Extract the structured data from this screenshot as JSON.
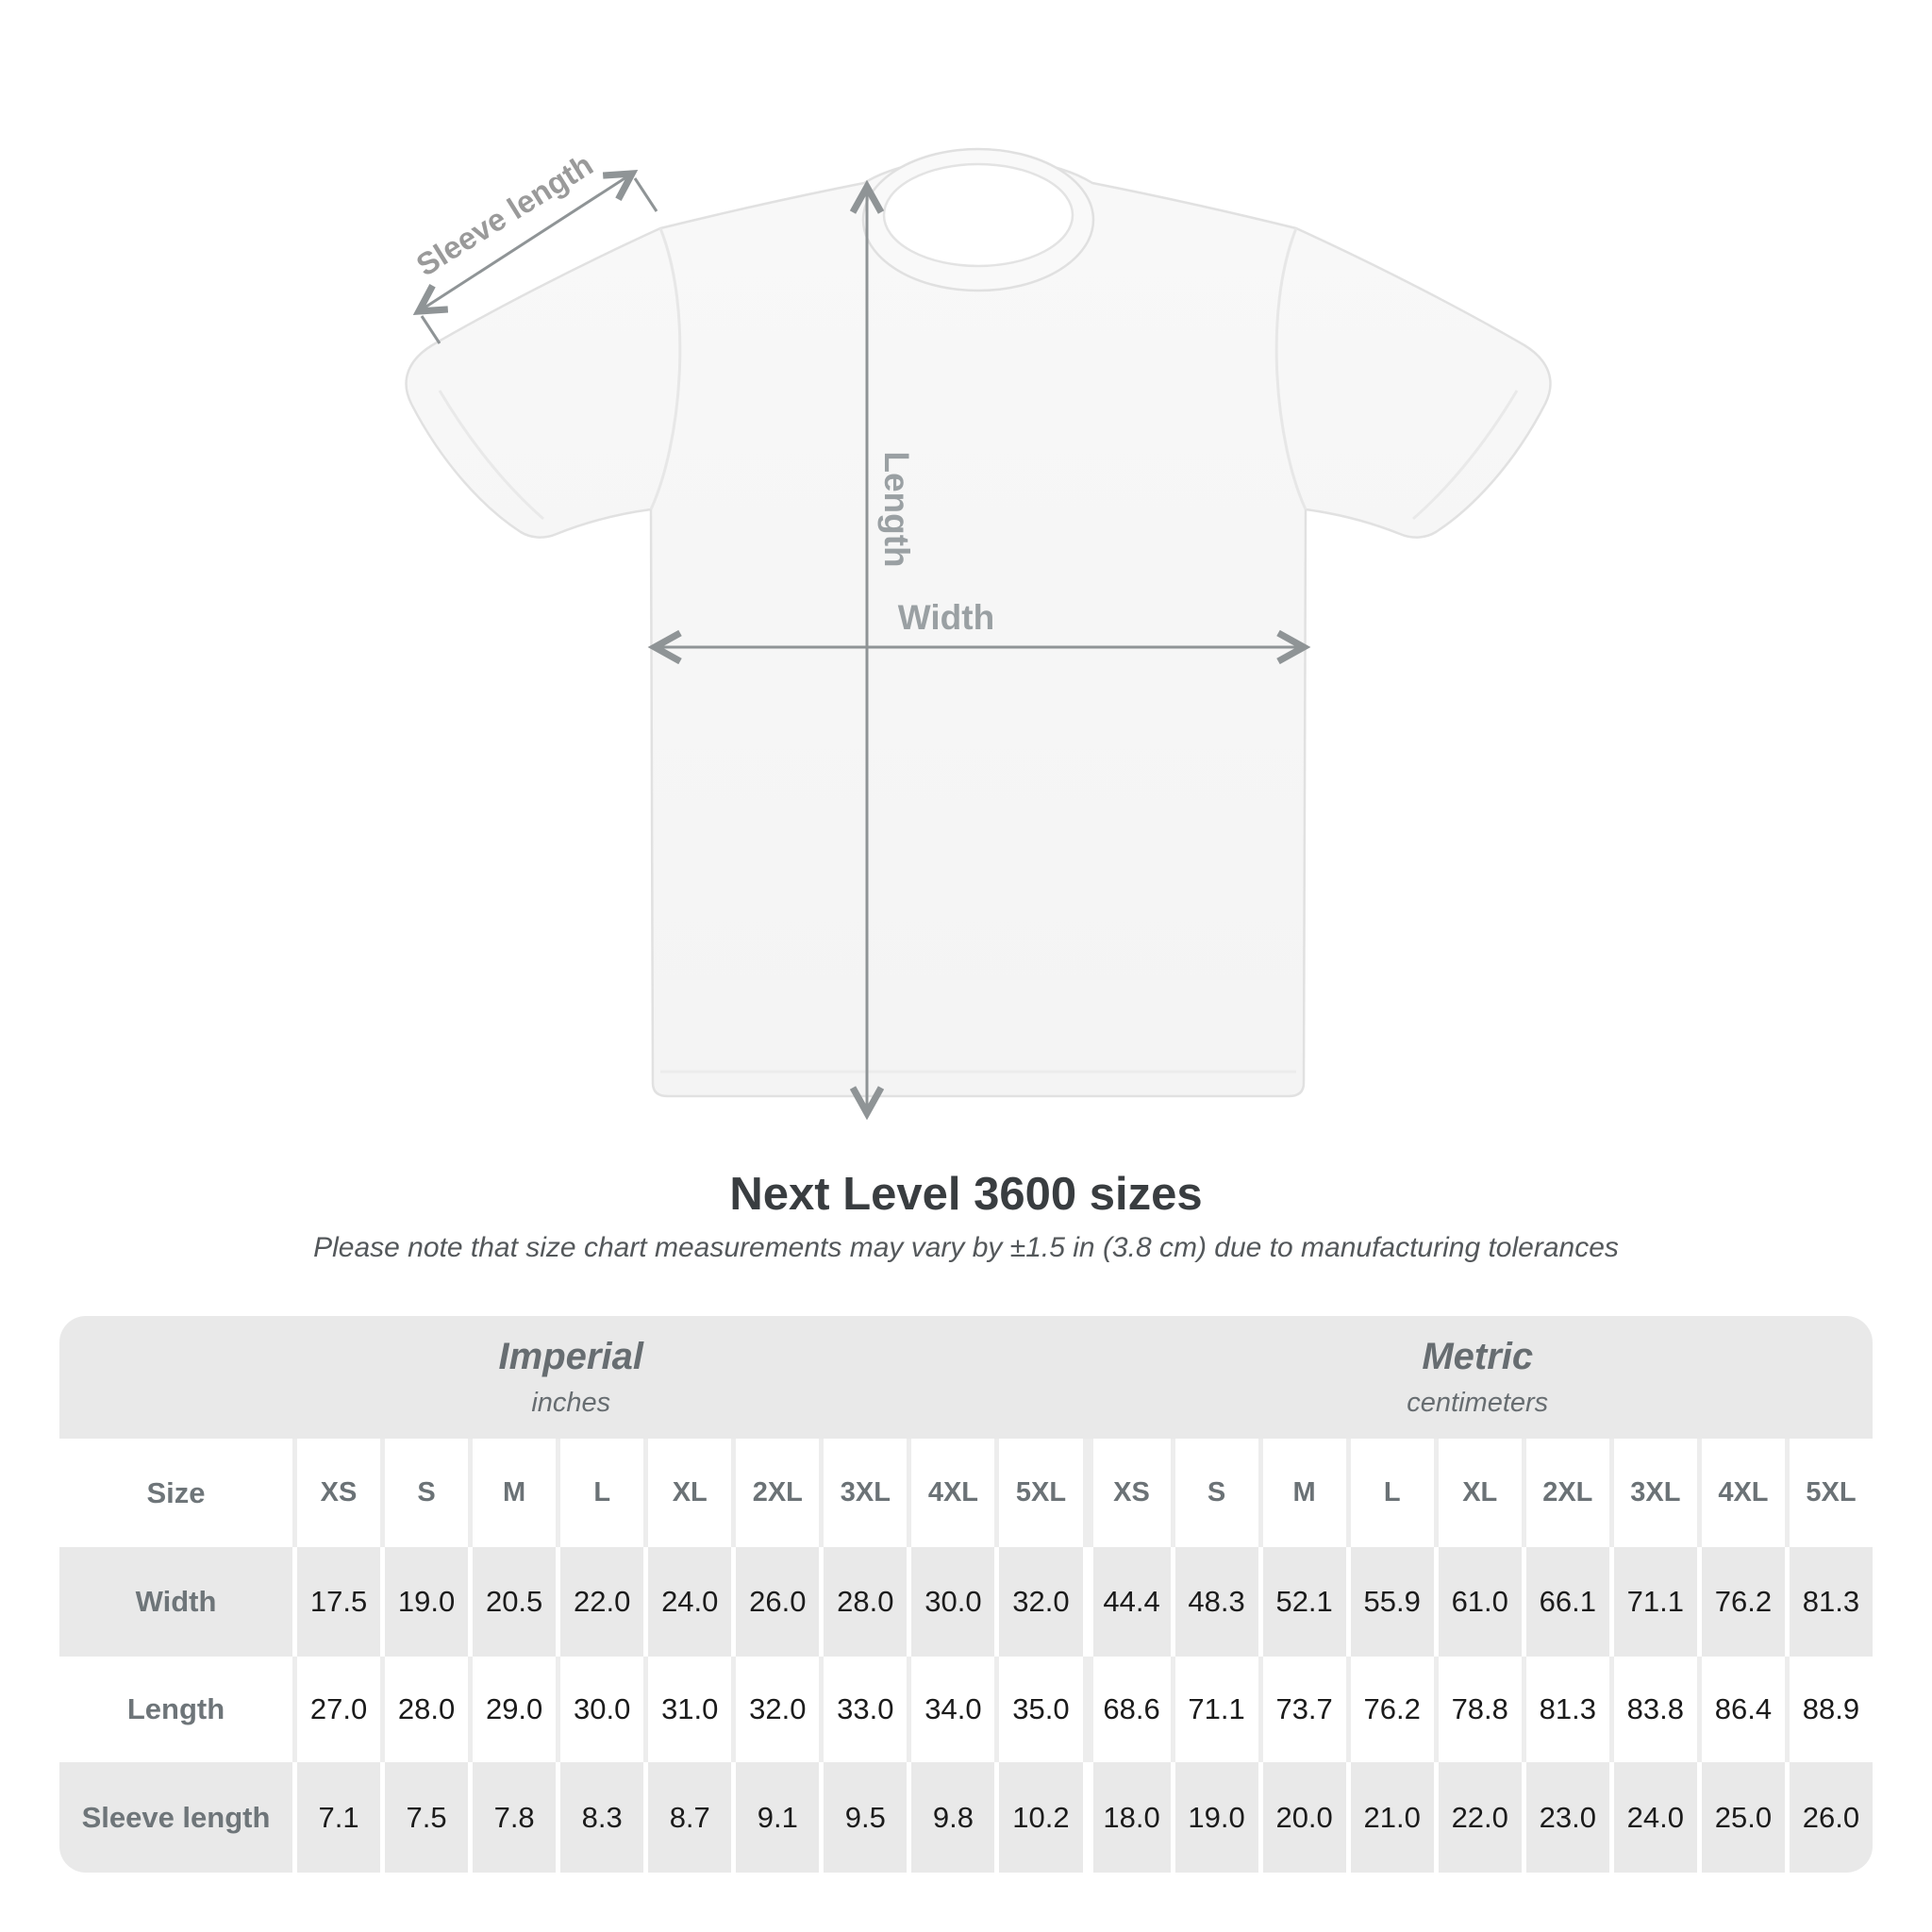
{
  "diagram": {
    "sleeve_length_label": "Sleeve length",
    "length_label": "Length",
    "width_label": "Width"
  },
  "title": "Next Level 3600 sizes",
  "subtitle": "Please note that size chart measurements may vary by ±1.5 in (3.8 cm) due to manufacturing tolerances",
  "chart_data": {
    "type": "table",
    "title": "Next Level 3600 sizes",
    "note": "Please note that size chart measurements may vary by ±1.5 in (3.8 cm) due to manufacturing tolerances",
    "unit_groups": [
      {
        "label": "Imperial",
        "unit": "inches"
      },
      {
        "label": "Metric",
        "unit": "centimeters"
      }
    ],
    "size_header_label": "Size",
    "sizes": [
      "XS",
      "S",
      "M",
      "L",
      "XL",
      "2XL",
      "3XL",
      "4XL",
      "5XL"
    ],
    "rows": [
      {
        "label": "Width",
        "imperial": [
          "17.5",
          "19.0",
          "20.5",
          "22.0",
          "24.0",
          "26.0",
          "28.0",
          "30.0",
          "32.0"
        ],
        "metric": [
          "44.4",
          "48.3",
          "52.1",
          "55.9",
          "61.0",
          "66.1",
          "71.1",
          "76.2",
          "81.3"
        ]
      },
      {
        "label": "Length",
        "imperial": [
          "27.0",
          "28.0",
          "29.0",
          "30.0",
          "31.0",
          "32.0",
          "33.0",
          "34.0",
          "35.0"
        ],
        "metric": [
          "68.6",
          "71.1",
          "73.7",
          "76.2",
          "78.8",
          "81.3",
          "83.8",
          "86.4",
          "88.9"
        ]
      },
      {
        "label": "Sleeve length",
        "imperial": [
          "7.1",
          "7.5",
          "7.8",
          "8.3",
          "8.7",
          "9.1",
          "9.5",
          "9.8",
          "10.2"
        ],
        "metric": [
          "18.0",
          "19.0",
          "20.0",
          "21.0",
          "22.0",
          "23.0",
          "24.0",
          "25.0",
          "26.0"
        ]
      }
    ],
    "colors": {
      "band_gray": "#e9e9e9",
      "label_text": "#6e7579",
      "value_text": "#1b1b1b",
      "measure_line": "#8f9496",
      "shirt_fill": "#f7f7f7"
    }
  }
}
